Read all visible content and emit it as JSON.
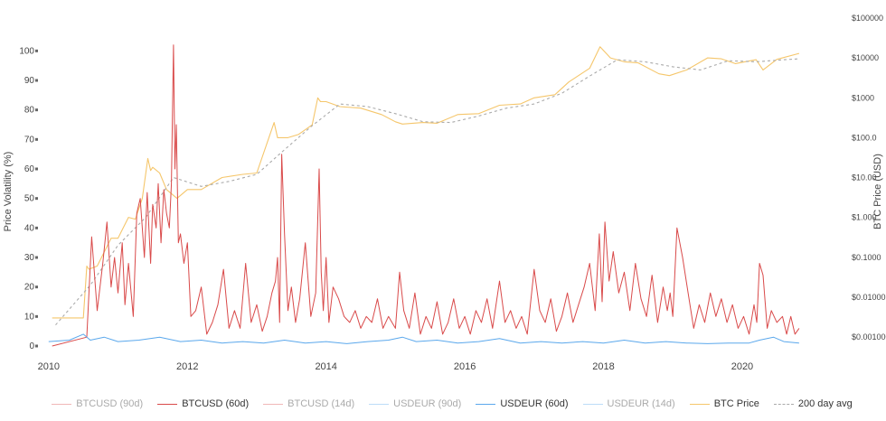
{
  "chart_data": {
    "type": "line",
    "ylabel": "Price Volatility (%)",
    "y2label": "BTC Price (USD)",
    "ylim": [
      0,
      105
    ],
    "y_ticks": [
      "0",
      "10",
      "20",
      "30",
      "40",
      "50",
      "60",
      "70",
      "80",
      "90",
      "100"
    ],
    "y2_scale": "log",
    "y2lim": [
      0.001,
      100000
    ],
    "y2_ticks": [
      "$0.001000",
      "$0.01000",
      "$0.1000",
      "$1.000",
      "$10.00",
      "$100.0",
      "$1000",
      "$10000",
      "$100000"
    ],
    "xlim": [
      2009.95,
      2020.9
    ],
    "x_ticks": [
      "2010",
      "2012",
      "2014",
      "2016",
      "2018",
      "2020"
    ],
    "legend_position": "bottom",
    "grid": false,
    "series": [
      {
        "name": "BTCUSD (90d)",
        "visible": false,
        "color": "#d94a4a",
        "values": []
      },
      {
        "name": "BTCUSD (60d)",
        "visible": true,
        "color": "#d94a4a",
        "axis": "left",
        "x": [
          2010.05,
          2010.55,
          2010.62,
          2010.7,
          2010.78,
          2010.84,
          2010.9,
          2010.95,
          2011.0,
          2011.06,
          2011.1,
          2011.15,
          2011.22,
          2011.27,
          2011.32,
          2011.38,
          2011.42,
          2011.47,
          2011.5,
          2011.55,
          2011.58,
          2011.62,
          2011.66,
          2011.7,
          2011.74,
          2011.77,
          2011.8,
          2011.82,
          2011.84,
          2011.87,
          2011.9,
          2011.95,
          2012.0,
          2012.05,
          2012.12,
          2012.2,
          2012.28,
          2012.36,
          2012.44,
          2012.52,
          2012.6,
          2012.68,
          2012.76,
          2012.84,
          2012.92,
          2013.0,
          2013.08,
          2013.15,
          2013.22,
          2013.27,
          2013.3,
          2013.33,
          2013.36,
          2013.4,
          2013.45,
          2013.5,
          2013.56,
          2013.62,
          2013.7,
          2013.78,
          2013.85,
          2013.9,
          2013.93,
          2013.96,
          2014.0,
          2014.04,
          2014.1,
          2014.18,
          2014.26,
          2014.34,
          2014.42,
          2014.5,
          2014.58,
          2014.66,
          2014.74,
          2014.82,
          2014.9,
          2015.0,
          2015.06,
          2015.12,
          2015.2,
          2015.28,
          2015.36,
          2015.44,
          2015.52,
          2015.6,
          2015.68,
          2015.76,
          2015.84,
          2015.92,
          2016.0,
          2016.08,
          2016.16,
          2016.24,
          2016.32,
          2016.4,
          2016.5,
          2016.58,
          2016.66,
          2016.74,
          2016.82,
          2016.9,
          2017.0,
          2017.08,
          2017.16,
          2017.24,
          2017.32,
          2017.4,
          2017.48,
          2017.56,
          2017.64,
          2017.72,
          2017.8,
          2017.88,
          2017.94,
          2017.98,
          2018.02,
          2018.08,
          2018.14,
          2018.22,
          2018.3,
          2018.38,
          2018.46,
          2018.54,
          2018.62,
          2018.7,
          2018.78,
          2018.86,
          2018.92,
          2018.96,
          2019.0,
          2019.06,
          2019.14,
          2019.22,
          2019.3,
          2019.38,
          2019.46,
          2019.54,
          2019.62,
          2019.7,
          2019.78,
          2019.86,
          2019.94,
          2020.02,
          2020.1,
          2020.17,
          2020.21,
          2020.25,
          2020.3,
          2020.36,
          2020.42,
          2020.5,
          2020.58,
          2020.64,
          2020.7,
          2020.76,
          2020.82
        ],
        "values": [
          0,
          3,
          37,
          12,
          28,
          42,
          20,
          30,
          18,
          35,
          14,
          28,
          10,
          45,
          50,
          30,
          52,
          28,
          48,
          40,
          55,
          35,
          53,
          45,
          40,
          55,
          102,
          60,
          75,
          35,
          38,
          28,
          35,
          10,
          12,
          20,
          4,
          8,
          14,
          26,
          6,
          12,
          6,
          28,
          8,
          14,
          5,
          10,
          18,
          22,
          30,
          8,
          65,
          38,
          12,
          20,
          8,
          16,
          35,
          10,
          18,
          60,
          25,
          12,
          30,
          8,
          20,
          16,
          10,
          8,
          12,
          6,
          10,
          8,
          16,
          6,
          10,
          6,
          25,
          12,
          6,
          18,
          4,
          10,
          6,
          15,
          4,
          8,
          16,
          6,
          10,
          4,
          12,
          8,
          16,
          6,
          22,
          8,
          12,
          6,
          10,
          4,
          26,
          12,
          8,
          16,
          5,
          10,
          18,
          8,
          14,
          20,
          28,
          12,
          38,
          15,
          42,
          22,
          32,
          18,
          25,
          12,
          28,
          16,
          10,
          24,
          8,
          20,
          12,
          18,
          10,
          40,
          30,
          18,
          6,
          14,
          8,
          18,
          10,
          16,
          8,
          14,
          6,
          10,
          4,
          14,
          8,
          28,
          24,
          6,
          12,
          8,
          10,
          4,
          10,
          4,
          6
        ]
      },
      {
        "name": "BTCUSD (14d)",
        "visible": false,
        "color": "#d94a4a",
        "values": []
      },
      {
        "name": "USDEUR (90d)",
        "visible": false,
        "color": "#5ba8ec",
        "values": []
      },
      {
        "name": "USDEUR (60d)",
        "visible": true,
        "color": "#5ba8ec",
        "axis": "left",
        "x": [
          2010.0,
          2010.3,
          2010.5,
          2010.6,
          2010.8,
          2011.0,
          2011.3,
          2011.6,
          2011.9,
          2012.2,
          2012.5,
          2012.8,
          2013.1,
          2013.4,
          2013.7,
          2014.0,
          2014.3,
          2014.6,
          2014.9,
          2015.1,
          2015.3,
          2015.6,
          2015.9,
          2016.2,
          2016.5,
          2016.8,
          2017.1,
          2017.4,
          2017.7,
          2018.0,
          2018.3,
          2018.6,
          2018.9,
          2019.2,
          2019.5,
          2019.8,
          2020.1,
          2020.25,
          2020.45,
          2020.6,
          2020.82
        ],
        "values": [
          1.5,
          2,
          4,
          2,
          3,
          1.5,
          2,
          3,
          1.5,
          2,
          1,
          1.5,
          1,
          2,
          1,
          1.5,
          0.8,
          1.5,
          2,
          3,
          1.5,
          2,
          1,
          1.5,
          2.5,
          1,
          1.5,
          1,
          1.5,
          1,
          2,
          1,
          1.5,
          1,
          0.8,
          1,
          1,
          2,
          3,
          1.5,
          1
        ]
      },
      {
        "name": "USDEUR (14d)",
        "visible": false,
        "color": "#5ba8ec",
        "values": []
      },
      {
        "name": "BTC Price",
        "visible": true,
        "color": "#f5c66b",
        "axis": "right",
        "x": [
          2010.05,
          2010.5,
          2010.55,
          2010.58,
          2010.7,
          2010.9,
          2011.0,
          2011.15,
          2011.25,
          2011.35,
          2011.43,
          2011.47,
          2011.5,
          2011.6,
          2011.7,
          2011.85,
          2012.0,
          2012.2,
          2012.5,
          2012.8,
          2013.0,
          2013.25,
          2013.3,
          2013.45,
          2013.6,
          2013.8,
          2013.88,
          2013.92,
          2014.0,
          2014.2,
          2014.5,
          2014.8,
          2015.0,
          2015.1,
          2015.4,
          2015.6,
          2015.9,
          2016.2,
          2016.5,
          2016.8,
          2017.0,
          2017.3,
          2017.5,
          2017.8,
          2017.95,
          2018.1,
          2018.3,
          2018.5,
          2018.8,
          2018.95,
          2019.2,
          2019.5,
          2019.7,
          2019.9,
          2020.2,
          2020.3,
          2020.5,
          2020.82
        ],
        "values": [
          0.003,
          0.003,
          0.06,
          0.05,
          0.06,
          0.3,
          0.3,
          1,
          0.9,
          3,
          30,
          15,
          18,
          13,
          5,
          3,
          5,
          5,
          10,
          12,
          13,
          240,
          100,
          100,
          120,
          210,
          1000,
          800,
          800,
          600,
          550,
          380,
          250,
          220,
          240,
          230,
          380,
          400,
          650,
          700,
          1000,
          1200,
          2500,
          5500,
          19000,
          10000,
          8000,
          7500,
          4000,
          3600,
          5000,
          10000,
          9500,
          7200,
          9000,
          5000,
          9200,
          13000
        ]
      },
      {
        "name": "200 day avg",
        "visible": true,
        "color": "#aaaaaa",
        "axis": "right",
        "dashed": true,
        "x": [
          2010.1,
          2010.6,
          2011.0,
          2011.4,
          2011.8,
          2012.2,
          2012.6,
          2013.0,
          2013.4,
          2013.8,
          2014.2,
          2014.6,
          2015.0,
          2015.4,
          2015.8,
          2016.2,
          2016.6,
          2017.0,
          2017.4,
          2017.8,
          2018.2,
          2018.6,
          2019.0,
          2019.4,
          2019.8,
          2020.2,
          2020.6,
          2020.82
        ],
        "values": [
          0.002,
          0.02,
          0.2,
          1,
          10,
          6,
          8,
          12,
          50,
          200,
          700,
          600,
          400,
          250,
          240,
          350,
          550,
          700,
          1300,
          3500,
          9000,
          8000,
          6000,
          5000,
          8500,
          8000,
          9000,
          9500
        ]
      }
    ]
  }
}
